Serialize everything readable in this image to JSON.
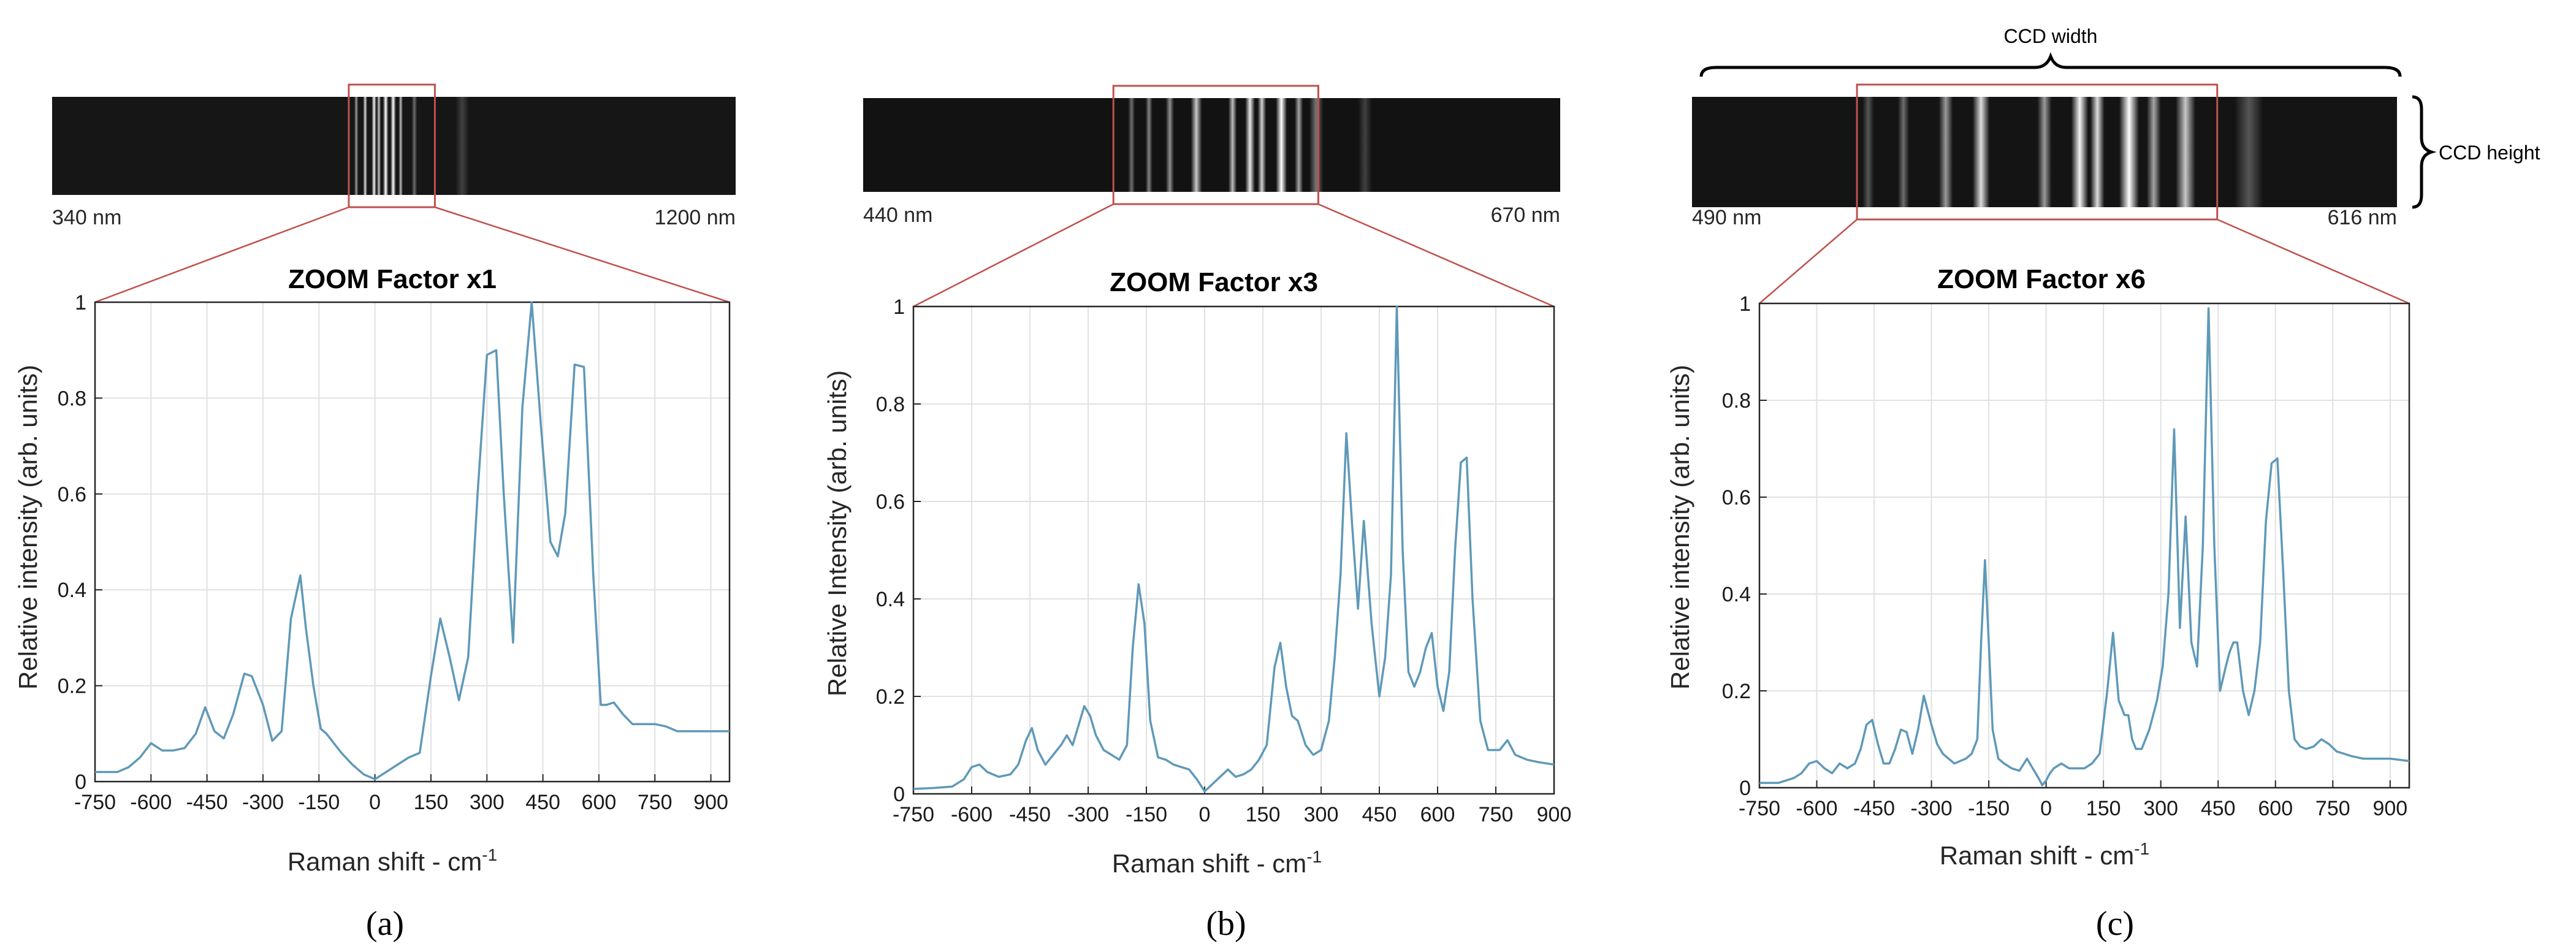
{
  "ccd_labels": {
    "width": "CCD width",
    "height": "CCD height"
  },
  "panels": [
    {
      "panel_label": "(a)",
      "wavelength_left": "340 nm",
      "wavelength_right": "1200 nm",
      "ccd_image": {
        "background": "#161616",
        "selection_start": 0.434,
        "selection_end": 0.56,
        "lines": [
          {
            "pos": 0.445,
            "width": 0.003,
            "intensity": 0.55
          },
          {
            "pos": 0.458,
            "width": 0.003,
            "intensity": 0.85
          },
          {
            "pos": 0.471,
            "width": 0.0035,
            "intensity": 0.95
          },
          {
            "pos": 0.478,
            "width": 0.003,
            "intensity": 0.75
          },
          {
            "pos": 0.488,
            "width": 0.004,
            "intensity": 1.0
          },
          {
            "pos": 0.499,
            "width": 0.004,
            "intensity": 1.0
          },
          {
            "pos": 0.51,
            "width": 0.003,
            "intensity": 0.7
          },
          {
            "pos": 0.53,
            "width": 0.004,
            "intensity": 0.35
          },
          {
            "pos": 0.6,
            "width": 0.01,
            "intensity": 0.15
          }
        ]
      }
    },
    {
      "panel_label": "(b)",
      "wavelength_left": "440 nm",
      "wavelength_right": "670 nm",
      "ccd_image": {
        "background": "#121212",
        "selection_start": 0.359,
        "selection_end": 0.653,
        "lines": [
          {
            "pos": 0.385,
            "width": 0.005,
            "intensity": 0.35
          },
          {
            "pos": 0.41,
            "width": 0.005,
            "intensity": 0.45
          },
          {
            "pos": 0.44,
            "width": 0.006,
            "intensity": 0.5
          },
          {
            "pos": 0.478,
            "width": 0.008,
            "intensity": 0.75
          },
          {
            "pos": 0.53,
            "width": 0.006,
            "intensity": 0.7
          },
          {
            "pos": 0.555,
            "width": 0.007,
            "intensity": 0.9
          },
          {
            "pos": 0.572,
            "width": 0.006,
            "intensity": 0.8
          },
          {
            "pos": 0.6,
            "width": 0.008,
            "intensity": 1.0
          },
          {
            "pos": 0.625,
            "width": 0.006,
            "intensity": 0.6
          },
          {
            "pos": 0.65,
            "width": 0.01,
            "intensity": 0.4
          },
          {
            "pos": 0.72,
            "width": 0.01,
            "intensity": 0.15
          }
        ]
      }
    },
    {
      "panel_label": "(c)",
      "wavelength_left": "490 nm",
      "wavelength_right": "616 nm",
      "ccd_image": {
        "background": "#141414",
        "selection_start": 0.234,
        "selection_end": 0.745,
        "lines": [
          {
            "pos": 0.25,
            "width": 0.008,
            "intensity": 0.25
          },
          {
            "pos": 0.3,
            "width": 0.008,
            "intensity": 0.35
          },
          {
            "pos": 0.36,
            "width": 0.01,
            "intensity": 0.55
          },
          {
            "pos": 0.41,
            "width": 0.012,
            "intensity": 0.85
          },
          {
            "pos": 0.5,
            "width": 0.01,
            "intensity": 0.55
          },
          {
            "pos": 0.55,
            "width": 0.012,
            "intensity": 0.95
          },
          {
            "pos": 0.575,
            "width": 0.01,
            "intensity": 0.85
          },
          {
            "pos": 0.62,
            "width": 0.014,
            "intensity": 1.0
          },
          {
            "pos": 0.655,
            "width": 0.01,
            "intensity": 0.6
          },
          {
            "pos": 0.7,
            "width": 0.014,
            "intensity": 0.75
          },
          {
            "pos": 0.79,
            "width": 0.02,
            "intensity": 0.25
          }
        ]
      }
    }
  ],
  "chart_data": [
    {
      "type": "line",
      "title": "ZOOM Factor x1",
      "xlabel": "Raman shift - cm",
      "xlabel_superscript": "-1",
      "ylabel": "Relative intensity (arb. units)",
      "xlim": [
        -750,
        950
      ],
      "ylim": [
        0,
        1
      ],
      "xticks": [
        -750,
        -600,
        -450,
        -300,
        -150,
        0,
        150,
        300,
        450,
        600,
        750,
        900
      ],
      "yticks": [
        0,
        0.2,
        0.4,
        0.6,
        0.8,
        1
      ],
      "grid": true,
      "line_color": "#5f99b8",
      "series": [
        {
          "x": [
            -750,
            -720,
            -690,
            -660,
            -630,
            -600,
            -570,
            -540,
            -510,
            -480,
            -455,
            -430,
            -405,
            -380,
            -350,
            -330,
            -300,
            -275,
            -250,
            -225,
            -200,
            -185,
            -165,
            -145,
            -130,
            -110,
            -90,
            -60,
            -30,
            0,
            30,
            60,
            90,
            120,
            150,
            175,
            200,
            225,
            250,
            275,
            300,
            325,
            345,
            370,
            395,
            420,
            445,
            470,
            490,
            510,
            535,
            560,
            585,
            605,
            620,
            640,
            665,
            690,
            720,
            750,
            780,
            810,
            840,
            870,
            900,
            930,
            950
          ],
          "y": [
            0.02,
            0.02,
            0.02,
            0.03,
            0.05,
            0.08,
            0.065,
            0.065,
            0.07,
            0.1,
            0.155,
            0.105,
            0.09,
            0.14,
            0.225,
            0.22,
            0.16,
            0.085,
            0.105,
            0.34,
            0.43,
            0.32,
            0.2,
            0.11,
            0.1,
            0.08,
            0.06,
            0.035,
            0.015,
            0.005,
            0.02,
            0.035,
            0.05,
            0.06,
            0.22,
            0.34,
            0.26,
            0.17,
            0.26,
            0.6,
            0.89,
            0.9,
            0.6,
            0.29,
            0.78,
            1.0,
            0.74,
            0.5,
            0.47,
            0.56,
            0.87,
            0.865,
            0.43,
            0.16,
            0.16,
            0.165,
            0.14,
            0.12,
            0.12,
            0.12,
            0.115,
            0.105,
            0.105,
            0.105,
            0.105,
            0.105,
            0.105
          ]
        }
      ]
    },
    {
      "type": "line",
      "title": "ZOOM Factor x3",
      "xlabel": "Raman shift - cm",
      "xlabel_superscript": "-1",
      "ylabel": "Relative Intensity (arb. units)",
      "xlim": [
        -750,
        900
      ],
      "ylim": [
        0,
        1
      ],
      "xticks": [
        -750,
        -600,
        -450,
        -300,
        -150,
        0,
        150,
        300,
        450,
        600,
        750,
        900
      ],
      "yticks": [
        0,
        0.2,
        0.4,
        0.6,
        0.8,
        1
      ],
      "grid": true,
      "line_color": "#5f99b8",
      "series": [
        {
          "x": [
            -750,
            -700,
            -650,
            -620,
            -600,
            -580,
            -560,
            -530,
            -500,
            -480,
            -460,
            -445,
            -430,
            -410,
            -390,
            -370,
            -355,
            -340,
            -325,
            -310,
            -295,
            -280,
            -260,
            -240,
            -220,
            -200,
            -185,
            -170,
            -155,
            -140,
            -120,
            -100,
            -80,
            -60,
            -40,
            -20,
            0,
            20,
            40,
            60,
            80,
            100,
            120,
            140,
            160,
            180,
            195,
            210,
            225,
            240,
            260,
            280,
            300,
            320,
            335,
            350,
            365,
            380,
            395,
            410,
            430,
            450,
            465,
            480,
            495,
            510,
            525,
            540,
            555,
            570,
            585,
            600,
            615,
            630,
            645,
            660,
            675,
            690,
            710,
            730,
            760,
            780,
            800,
            830,
            860,
            900
          ],
          "y": [
            0.01,
            0.012,
            0.015,
            0.03,
            0.055,
            0.06,
            0.045,
            0.035,
            0.04,
            0.06,
            0.11,
            0.135,
            0.09,
            0.06,
            0.08,
            0.1,
            0.12,
            0.1,
            0.14,
            0.18,
            0.16,
            0.12,
            0.09,
            0.08,
            0.07,
            0.1,
            0.3,
            0.43,
            0.35,
            0.15,
            0.075,
            0.07,
            0.06,
            0.055,
            0.05,
            0.03,
            0.005,
            0.02,
            0.035,
            0.05,
            0.035,
            0.04,
            0.05,
            0.07,
            0.1,
            0.26,
            0.31,
            0.22,
            0.16,
            0.15,
            0.1,
            0.08,
            0.09,
            0.15,
            0.28,
            0.45,
            0.74,
            0.55,
            0.38,
            0.56,
            0.35,
            0.2,
            0.28,
            0.45,
            1.0,
            0.5,
            0.25,
            0.22,
            0.25,
            0.3,
            0.33,
            0.22,
            0.17,
            0.25,
            0.5,
            0.68,
            0.69,
            0.4,
            0.15,
            0.09,
            0.09,
            0.11,
            0.08,
            0.07,
            0.065,
            0.06
          ]
        }
      ]
    },
    {
      "type": "line",
      "title": "ZOOM Factor x6",
      "xlabel": "Raman shift - cm",
      "xlabel_superscript": "-1",
      "ylabel": "Relative intensity (arb. units)",
      "xlim": [
        -750,
        950
      ],
      "ylim": [
        0,
        1
      ],
      "xticks": [
        -750,
        -600,
        -450,
        -300,
        -150,
        0,
        150,
        300,
        450,
        600,
        750,
        900
      ],
      "yticks": [
        0,
        0.2,
        0.4,
        0.6,
        0.8,
        1
      ],
      "grid": true,
      "line_color": "#5f99b8",
      "series": [
        {
          "x": [
            -750,
            -700,
            -660,
            -640,
            -620,
            -600,
            -580,
            -560,
            -540,
            -520,
            -500,
            -485,
            -470,
            -455,
            -440,
            -425,
            -410,
            -395,
            -380,
            -365,
            -350,
            -335,
            -320,
            -300,
            -285,
            -270,
            -255,
            -240,
            -225,
            -210,
            -195,
            -180,
            -170,
            -160,
            -150,
            -140,
            -125,
            -110,
            -90,
            -70,
            -50,
            -35,
            -20,
            -10,
            0,
            10,
            20,
            40,
            60,
            80,
            100,
            120,
            140,
            160,
            175,
            190,
            205,
            215,
            225,
            235,
            250,
            270,
            290,
            305,
            320,
            335,
            350,
            365,
            380,
            395,
            410,
            425,
            440,
            455,
            470,
            480,
            490,
            500,
            515,
            530,
            545,
            560,
            575,
            590,
            605,
            620,
            635,
            650,
            665,
            680,
            700,
            720,
            740,
            760,
            780,
            800,
            830,
            860,
            900,
            950
          ],
          "y": [
            0.01,
            0.01,
            0.02,
            0.03,
            0.05,
            0.055,
            0.04,
            0.03,
            0.05,
            0.04,
            0.05,
            0.08,
            0.13,
            0.14,
            0.09,
            0.05,
            0.05,
            0.08,
            0.12,
            0.115,
            0.07,
            0.12,
            0.19,
            0.13,
            0.09,
            0.07,
            0.06,
            0.05,
            0.055,
            0.06,
            0.07,
            0.1,
            0.3,
            0.47,
            0.3,
            0.12,
            0.06,
            0.05,
            0.04,
            0.035,
            0.06,
            0.04,
            0.02,
            0.005,
            0.015,
            0.03,
            0.04,
            0.05,
            0.04,
            0.04,
            0.04,
            0.05,
            0.07,
            0.2,
            0.32,
            0.18,
            0.15,
            0.15,
            0.1,
            0.08,
            0.08,
            0.12,
            0.18,
            0.25,
            0.4,
            0.74,
            0.33,
            0.56,
            0.3,
            0.25,
            0.5,
            0.99,
            0.5,
            0.2,
            0.25,
            0.28,
            0.3,
            0.3,
            0.2,
            0.15,
            0.2,
            0.3,
            0.55,
            0.67,
            0.68,
            0.45,
            0.2,
            0.1,
            0.085,
            0.08,
            0.085,
            0.1,
            0.09,
            0.075,
            0.07,
            0.065,
            0.06,
            0.06,
            0.06,
            0.055
          ]
        }
      ]
    }
  ]
}
